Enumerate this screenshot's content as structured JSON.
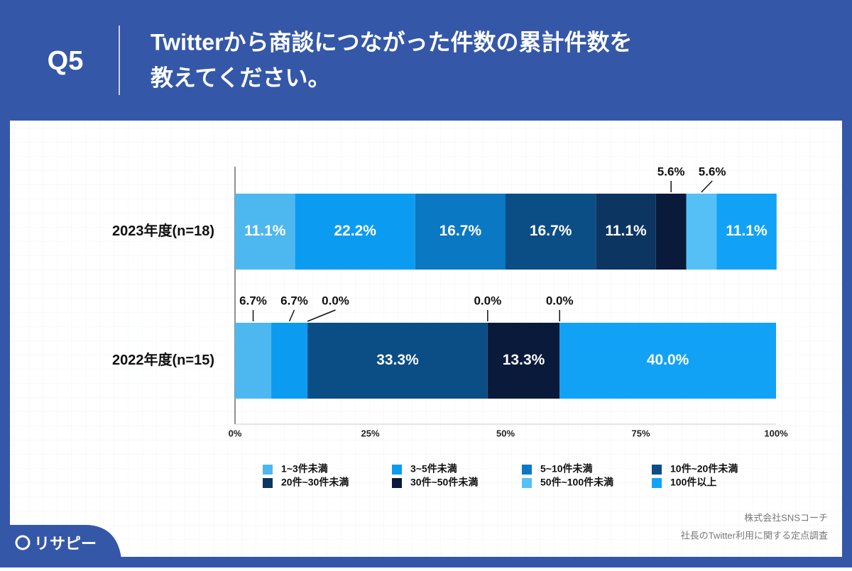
{
  "header": {
    "q": "Q5",
    "title_lines": [
      "Twitterから商談につながった件数の累計件数を",
      "教えてください。"
    ]
  },
  "chart_data": {
    "type": "stacked_bar_horizontal",
    "categories": [
      "2023年度(n=18)",
      "2022年度(n=15)"
    ],
    "series": [
      {
        "name": "1~3件未満",
        "color": "#4db8f0",
        "values": [
          11.1,
          6.7
        ],
        "value_labels": [
          "11.1%",
          "6.7%"
        ]
      },
      {
        "name": "3~5件未満",
        "color": "#0b9cf2",
        "values": [
          22.2,
          6.7
        ],
        "value_labels": [
          "22.2%",
          "6.7%"
        ]
      },
      {
        "name": "5~10件未満",
        "color": "#0a78c2",
        "values": [
          16.7,
          0.0
        ],
        "value_labels": [
          "16.7%",
          "0.0%"
        ]
      },
      {
        "name": "10件~20件未満",
        "color": "#0b4d85",
        "values": [
          16.7,
          33.3
        ],
        "value_labels": [
          "16.7%",
          "33.3%"
        ]
      },
      {
        "name": "20件~30件未満",
        "color": "#0c3562",
        "values": [
          11.1,
          0.0
        ],
        "value_labels": [
          "11.1%",
          "0.0%"
        ]
      },
      {
        "name": "30件~50件未満",
        "color": "#0a1a3a",
        "values": [
          5.6,
          13.3
        ],
        "value_labels": [
          "5.6%",
          "13.3%"
        ]
      },
      {
        "name": "50件~100件未満",
        "color": "#55c0f5",
        "values": [
          5.6,
          0.0
        ],
        "value_labels": [
          "5.6%",
          "0.0%"
        ]
      },
      {
        "name": "100件以上",
        "color": "#12a2f5",
        "values": [
          11.1,
          40.0
        ],
        "value_labels": [
          "11.1%",
          "40.0%"
        ]
      }
    ],
    "xlim": [
      0,
      100
    ],
    "xticks": [
      {
        "value": 0,
        "label": "0%"
      },
      {
        "value": 25,
        "label": "25%"
      },
      {
        "value": 50,
        "label": "50%"
      },
      {
        "value": 75,
        "label": "75%"
      },
      {
        "value": 100,
        "label": "100%"
      }
    ]
  },
  "footer": {
    "source": [
      "株式会社SNSコーチ",
      "社長のTwitter利用に関する定点調査"
    ],
    "logo": "リサピー"
  }
}
